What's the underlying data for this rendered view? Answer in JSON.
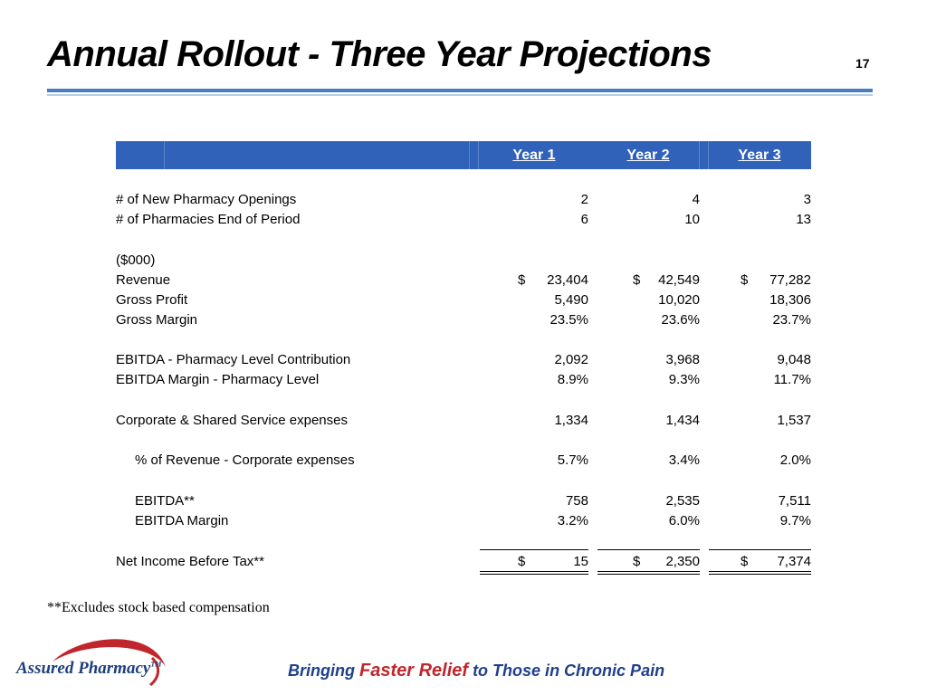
{
  "slide": {
    "title": "Annual Rollout - Three Year Projections",
    "page_number": "17"
  },
  "table": {
    "headers": [
      "Year 1",
      "Year 2",
      "Year 3"
    ],
    "rows": [
      {
        "label": "# of New Pharmacy Openings",
        "values": [
          "2",
          "4",
          "3"
        ]
      },
      {
        "label": "# of Pharmacies End of Period",
        "values": [
          "6",
          "10",
          "13"
        ]
      },
      {
        "label": "($000)"
      },
      {
        "label": "Revenue",
        "dollar": "$",
        "values": [
          "23,404",
          "42,549",
          "77,282"
        ]
      },
      {
        "label": "Gross Profit",
        "values": [
          "5,490",
          "10,020",
          "18,306"
        ]
      },
      {
        "label": "Gross Margin",
        "values": [
          "23.5%",
          "23.6%",
          "23.7%"
        ]
      },
      {
        "label": "EBITDA - Pharmacy Level Contribution",
        "values": [
          "2,092",
          "3,968",
          "9,048"
        ]
      },
      {
        "label": "EBITDA Margin - Pharmacy Level",
        "values": [
          "8.9%",
          "9.3%",
          "11.7%"
        ]
      },
      {
        "label": "Corporate & Shared Service expenses",
        "values": [
          "1,334",
          "1,434",
          "1,537"
        ]
      },
      {
        "label": "% of Revenue - Corporate expenses",
        "values": [
          "5.7%",
          "3.4%",
          "2.0%"
        ]
      },
      {
        "label": "EBITDA**",
        "values": [
          "758",
          "2,535",
          "7,511"
        ]
      },
      {
        "label": "EBITDA Margin",
        "values": [
          "3.2%",
          "6.0%",
          "9.7%"
        ]
      },
      {
        "label": "Net Income Before Tax**",
        "dollar": "$",
        "values": [
          "15",
          "2,350",
          "7,374"
        ]
      }
    ]
  },
  "footnote": "**Excludes stock based compensation",
  "logo": {
    "text": "Assured Pharmacy",
    "tm": "TM"
  },
  "tagline": {
    "part1": "Bringing ",
    "highlight": "Faster Relief",
    "part2": " to Those in Chronic Pain"
  },
  "colors": {
    "header_bar": "#2f62b8",
    "title_rule": "#4a7ebb",
    "tagline": "#1f3f8c",
    "tagline_highlight": "#c0262c",
    "logo_swoosh": "#c0262c"
  }
}
